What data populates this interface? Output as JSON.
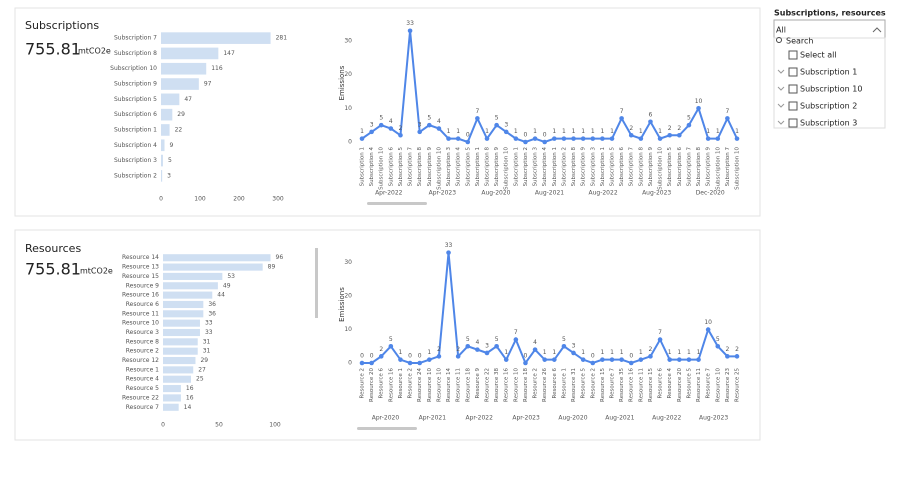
{
  "cards": [
    {
      "title": "Subscriptions",
      "value": 755.81,
      "unit": "mtCO2e"
    },
    {
      "title": "Resources",
      "value": 755.81,
      "unit": "mtCO2e"
    }
  ],
  "slicer": {
    "title": "Subscriptions, resources",
    "value": "All",
    "search": "Search",
    "items": [
      "Select all",
      "Subscription 1",
      "Subscription 10",
      "Subscription 2",
      "Subscription 3"
    ]
  },
  "chart_data": [
    {
      "type": "hbar",
      "color": "#cfdff2",
      "categories": [
        "Subscription 7",
        "Subscription 8",
        "Subscription 10",
        "Subscription 9",
        "Subscription 5",
        "Subscription 6",
        "Subscription 1",
        "Subscription 4",
        "Subscription 3",
        "Subscription 2"
      ],
      "values": [
        281,
        147,
        116,
        97,
        47,
        29,
        22,
        9,
        5,
        3
      ],
      "xlim": [
        0,
        300
      ],
      "xticks": [
        0,
        100,
        200,
        300
      ]
    },
    {
      "type": "line",
      "color": "#4f86e8",
      "y_label": "Emissions",
      "ylim": [
        0,
        35
      ],
      "yticks": [
        0,
        10,
        20,
        30
      ],
      "categories": [
        "Subscription 1",
        "Subscription 4",
        "Subscription 10",
        "Subscription 6",
        "Subscription 5",
        "Subscription 7",
        "Subscription 8",
        "Subscription 9",
        "Subscription 10",
        "Subscription 3",
        "Subscription 4",
        "Subscription 5",
        "Subscription 1",
        "Subscription 8",
        "Subscription 9",
        "Subscription 10",
        "Subscription 1",
        "Subscription 2",
        "Subscription 3",
        "Subscription 4",
        "Subscription 1",
        "Subscription 2",
        "Subscription 8",
        "Subscription 9",
        "Subscription 3",
        "Subscription 1",
        "Subscription 5",
        "Subscription 6",
        "Subscription 7",
        "Subscription 8",
        "Subscription 9",
        "Subscription 10",
        "Subscription 5",
        "Subscription 6",
        "Subscription 7",
        "Subscription 8",
        "Subscription 9",
        "Subscription 10",
        "Subscription 7",
        "Subscription 10"
      ],
      "values": [
        1,
        3,
        5,
        4,
        2,
        33,
        3,
        5,
        4,
        1,
        1,
        0,
        7,
        1,
        5,
        3,
        1,
        0,
        1,
        0,
        1,
        1,
        1,
        1,
        1,
        1,
        1,
        7,
        2,
        1,
        6,
        1,
        2,
        2,
        5,
        10,
        1,
        1,
        7,
        1
      ],
      "groups": [
        "Apr-2022",
        "Apr-2023",
        "Aug-2020",
        "Aug-2021",
        "Aug-2022",
        "Aug-2023",
        "Dec-2020"
      ]
    },
    {
      "type": "hbar",
      "color": "#cfdff2",
      "categories": [
        "Resource 14",
        "Resource 13",
        "Resource 15",
        "Resource 9",
        "Resource 16",
        "Resource 6",
        "Resource 11",
        "Resource 10",
        "Resource 3",
        "Resource 8",
        "Resource 2",
        "Resource 12",
        "Resource 1",
        "Resource 4",
        "Resource 5",
        "Resource 22",
        "Resource 7"
      ],
      "values": [
        96,
        89,
        53,
        49,
        44,
        36,
        36,
        33,
        33,
        31,
        31,
        29,
        27,
        25,
        16,
        16,
        14
      ],
      "xlim": [
        0,
        100
      ],
      "xticks": [
        0,
        50,
        100
      ]
    },
    {
      "type": "line",
      "color": "#4f86e8",
      "y_label": "Emissions",
      "ylim": [
        0,
        35
      ],
      "yticks": [
        0,
        10,
        20,
        30
      ],
      "categories": [
        "Resource 2",
        "Resource 20",
        "Resource 6",
        "Resource 16",
        "Resource 1",
        "Resource 2",
        "Resource 24",
        "Resource 10",
        "Resource 10",
        "Resource 14",
        "Resource 11",
        "Resource 18",
        "Resource 9",
        "Resource 22",
        "Resource 38",
        "Resource 16",
        "Resource 10",
        "Resource 18",
        "Resource 2",
        "Resource 26",
        "Resource 6",
        "Resource 1",
        "Resource 31",
        "Resource 5",
        "Resource 2",
        "Resource 15",
        "Resource 7",
        "Resource 35",
        "Resource 16",
        "Resource 11",
        "Resource 15",
        "Resource 6",
        "Resource 4",
        "Resource 20",
        "Resource 5",
        "Resource 11",
        "Resource 7",
        "Resource 10",
        "Resource 23",
        "Resource 25"
      ],
      "values": [
        0,
        0,
        2,
        5,
        1,
        0,
        0,
        1,
        2,
        33,
        2,
        5,
        4,
        3,
        5,
        1,
        7,
        0,
        4,
        1,
        1,
        5,
        3,
        1,
        0,
        1,
        1,
        1,
        0,
        1,
        2,
        7,
        1,
        1,
        1,
        1,
        10,
        5,
        2,
        2
      ],
      "groups": [
        "Apr-2020",
        "Apr-2021",
        "Apr-2022",
        "Apr-2023",
        "Aug-2020",
        "Aug-2021",
        "Aug-2022",
        "Aug-2023"
      ]
    }
  ]
}
